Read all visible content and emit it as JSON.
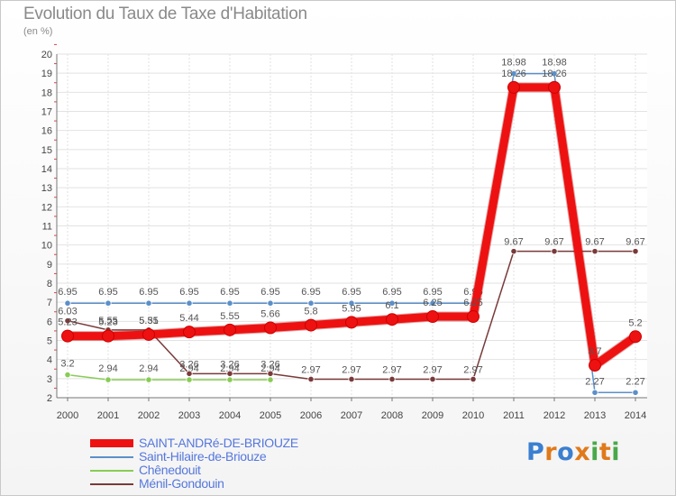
{
  "header": {
    "title": "Evolution du Taux de Taxe d'Habitation",
    "unit": "(en %)"
  },
  "logo": {
    "text": "Proxiti",
    "colors": [
      "#3a7fd0",
      "#e07a1a",
      "#3a7fd0",
      "#e07a1a",
      "#4aa84a",
      "#e07a1a",
      "#4aa84a"
    ]
  },
  "chart_data": {
    "type": "line",
    "title": "Evolution du Taux de Taxe d'Habitation",
    "ylabel": "(en %)",
    "xlabel": "",
    "ylim": [
      2,
      20
    ],
    "yticks": [
      2,
      3,
      4,
      5,
      6,
      7,
      8,
      9,
      10,
      11,
      12,
      13,
      14,
      15,
      16,
      17,
      18,
      19,
      20
    ],
    "grid": true,
    "legend_position": "bottom-left",
    "categories": [
      "2000",
      "2001",
      "2002",
      "2003",
      "2004",
      "2005",
      "2006",
      "2007",
      "2008",
      "2009",
      "2010",
      "2011",
      "2012",
      "2013",
      "2014"
    ],
    "series": [
      {
        "name": "Saint-Hilaire-de-Briouze",
        "color": "#5b8fc9",
        "values": [
          6.95,
          6.95,
          6.95,
          6.95,
          6.95,
          6.95,
          6.95,
          6.95,
          6.95,
          6.95,
          6.95,
          18.98,
          18.98,
          2.27,
          2.27
        ],
        "labels": [
          "6.95",
          "6.95",
          "6.95",
          "6.95",
          "6.95",
          "6.95",
          "6.95",
          "6.95",
          "6.95",
          "6.95",
          "6.95",
          "18.98",
          "18.98",
          "2.27",
          "2.27"
        ]
      },
      {
        "name": "Chênedouit",
        "color": "#88cc55",
        "values": [
          3.2,
          2.94,
          2.94,
          2.94,
          2.94,
          2.94,
          null,
          null,
          null,
          null,
          null,
          null,
          null,
          null,
          null
        ],
        "labels": [
          "3.2",
          "2.94",
          "2.94",
          "2.94",
          "2.94",
          "2.94",
          "",
          "",
          "",
          "",
          "",
          "",
          "",
          "",
          ""
        ]
      },
      {
        "name": "Ménil-Gondouin",
        "color": "#7a3a3a",
        "values": [
          6.03,
          5.55,
          5.55,
          3.26,
          3.26,
          3.26,
          2.97,
          2.97,
          2.97,
          2.97,
          2.97,
          9.67,
          9.67,
          9.67,
          9.67
        ],
        "labels": [
          "6.03",
          "5.55",
          "5.55",
          "3.26",
          "3.26",
          "3.26",
          "2.97",
          "2.97",
          "2.97",
          "2.97",
          "2.97",
          "9.67",
          "9.67",
          "9.67",
          "9.67"
        ]
      },
      {
        "name": "SAINT-ANDRé-DE-BRIOUZE",
        "color": "#ee1111",
        "values": [
          5.23,
          5.23,
          5.31,
          5.44,
          5.55,
          5.66,
          5.8,
          5.95,
          6.1,
          6.25,
          6.25,
          18.26,
          18.26,
          3.7,
          5.2
        ],
        "labels": [
          "5.23",
          "5.23",
          "5.31",
          "5.44",
          "5.55",
          "5.66",
          "5.8",
          "5.95",
          "6.1",
          "6.25",
          "6.25",
          "18.26",
          "18.26",
          "3.7",
          "5.2"
        ]
      }
    ]
  },
  "legend": {
    "items": [
      {
        "label": "SAINT-ANDRé-DE-BRIOUZE",
        "color": "#ee1111",
        "text_color": "#5577dd"
      },
      {
        "label": "Saint-Hilaire-de-Briouze",
        "color": "#5b8fc9",
        "text_color": "#5577dd"
      },
      {
        "label": "Chênedouit",
        "color": "#88cc55",
        "text_color": "#5577dd"
      },
      {
        "label": "Ménil-Gondouin",
        "color": "#7a3a3a",
        "text_color": "#5577dd"
      }
    ]
  }
}
